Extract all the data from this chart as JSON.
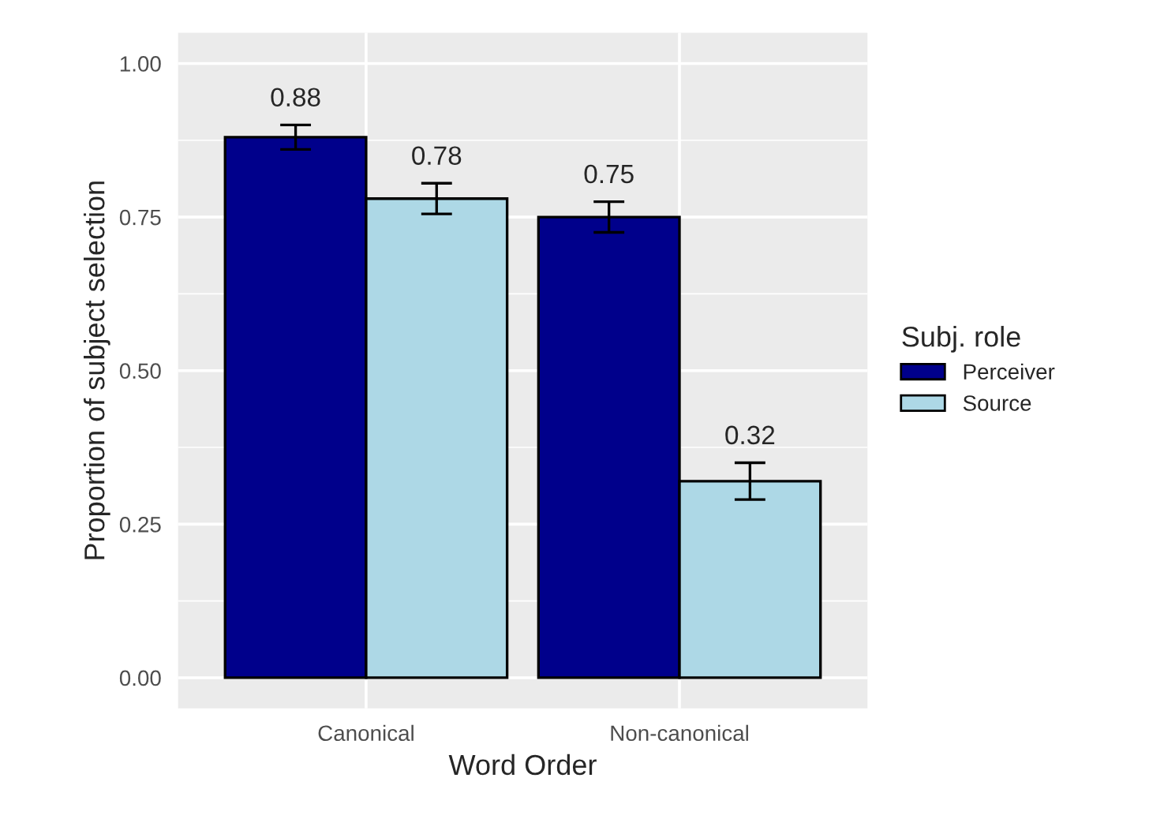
{
  "chart_data": {
    "type": "bar",
    "xlabel": "Word Order",
    "ylabel": "Proportion of subject selection",
    "legend_title": "Subj. role",
    "categories": [
      "Canonical",
      "Non-canonical"
    ],
    "series": [
      {
        "name": "Perceiver",
        "color": "#00008b",
        "values": [
          0.88,
          0.75
        ],
        "errors": [
          0.02,
          0.025
        ]
      },
      {
        "name": "Source",
        "color": "#add8e6",
        "values": [
          0.78,
          0.32
        ],
        "errors": [
          0.025,
          0.03
        ]
      }
    ],
    "ylim": [
      -0.05,
      1.05
    ],
    "yticks": [
      {
        "value": 0,
        "label": "0.00"
      },
      {
        "value": 0.25,
        "label": "0.25"
      },
      {
        "value": 0.5,
        "label": "0.50"
      },
      {
        "value": 0.75,
        "label": "0.75"
      },
      {
        "value": 1,
        "label": "1.00"
      }
    ],
    "grid": true,
    "legend": "right",
    "data_labels": true
  }
}
